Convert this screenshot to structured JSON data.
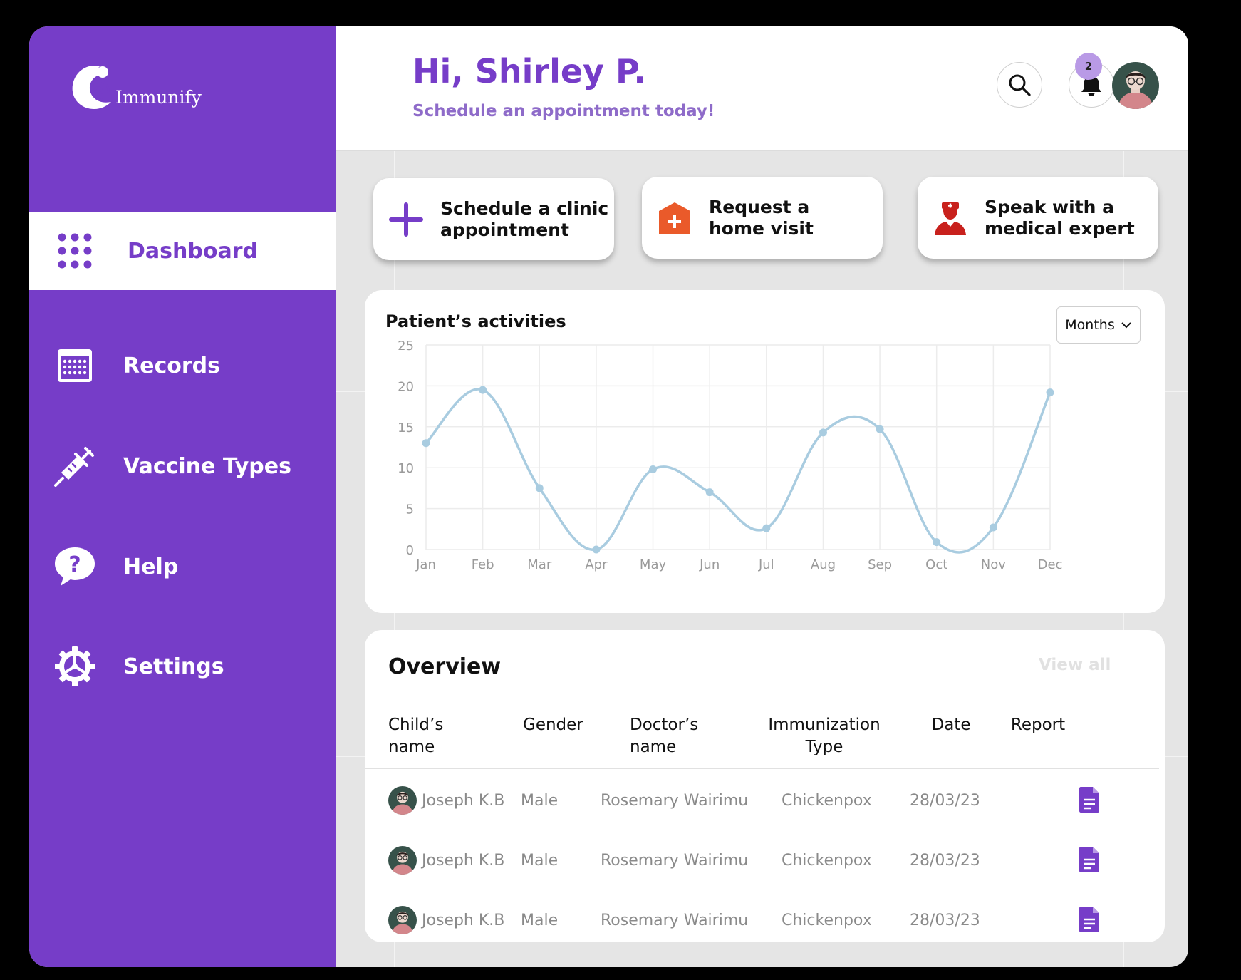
{
  "app": {
    "name": "Immunify"
  },
  "sidebar": {
    "items": [
      {
        "label": "Dashboard",
        "icon": "dots-grid-icon",
        "active": true
      },
      {
        "label": "Records",
        "icon": "calendar-icon"
      },
      {
        "label": "Vaccine Types",
        "icon": "syringe-icon"
      },
      {
        "label": "Help",
        "icon": "help-bubble-icon"
      },
      {
        "label": "Settings",
        "icon": "gear-icon"
      }
    ]
  },
  "header": {
    "greeting": "Hi, Shirley P.",
    "subtitle": "Schedule an appointment today!",
    "notification_count": "2"
  },
  "actions": [
    {
      "label": "Schedule a clinic\nappointment",
      "icon": "plus-icon"
    },
    {
      "label": "Request a\nhome visit",
      "icon": "house-plus-icon"
    },
    {
      "label": "Speak with a\nmedical expert",
      "icon": "doctor-icon"
    }
  ],
  "chart_panel": {
    "title": "Patient’s activities",
    "period_select": "Months"
  },
  "chart_data": {
    "type": "line",
    "categories": [
      "Jan",
      "Feb",
      "Mar",
      "Apr",
      "May",
      "Jun",
      "Jul",
      "Aug",
      "Sep",
      "Oct",
      "Nov",
      "Dec"
    ],
    "series": [
      {
        "values": [
          13,
          19.5,
          7.5,
          0,
          9.8,
          7,
          2.6,
          14.3,
          14.7,
          0.9,
          2.7,
          19.2
        ]
      }
    ],
    "yticks": [
      0,
      5,
      10,
      15,
      20,
      25
    ],
    "ylim": [
      0,
      25
    ],
    "grid": true,
    "line_color": "#a9cce0"
  },
  "overview": {
    "title": "Overview",
    "view_all": "View all",
    "columns": [
      "Child’s name",
      "Gender",
      "Doctor’s name",
      "Immunization\nType",
      "Date",
      "Report"
    ],
    "rows": [
      {
        "child": "Joseph K.B",
        "gender": "Male",
        "doctor": "Rosemary Wairimu",
        "type": "Chickenpox",
        "date": "28/03/23"
      },
      {
        "child": "Joseph K.B",
        "gender": "Male",
        "doctor": "Rosemary Wairimu",
        "type": "Chickenpox",
        "date": "28/03/23"
      },
      {
        "child": "Joseph K.B",
        "gender": "Male",
        "doctor": "Rosemary Wairimu",
        "type": "Chickenpox",
        "date": "28/03/23"
      }
    ]
  },
  "colors": {
    "brand": "#763dc8",
    "accent_light": "#b99ae6",
    "home_visit": "#ea5a2a",
    "medical_expert": "#c8211d"
  }
}
